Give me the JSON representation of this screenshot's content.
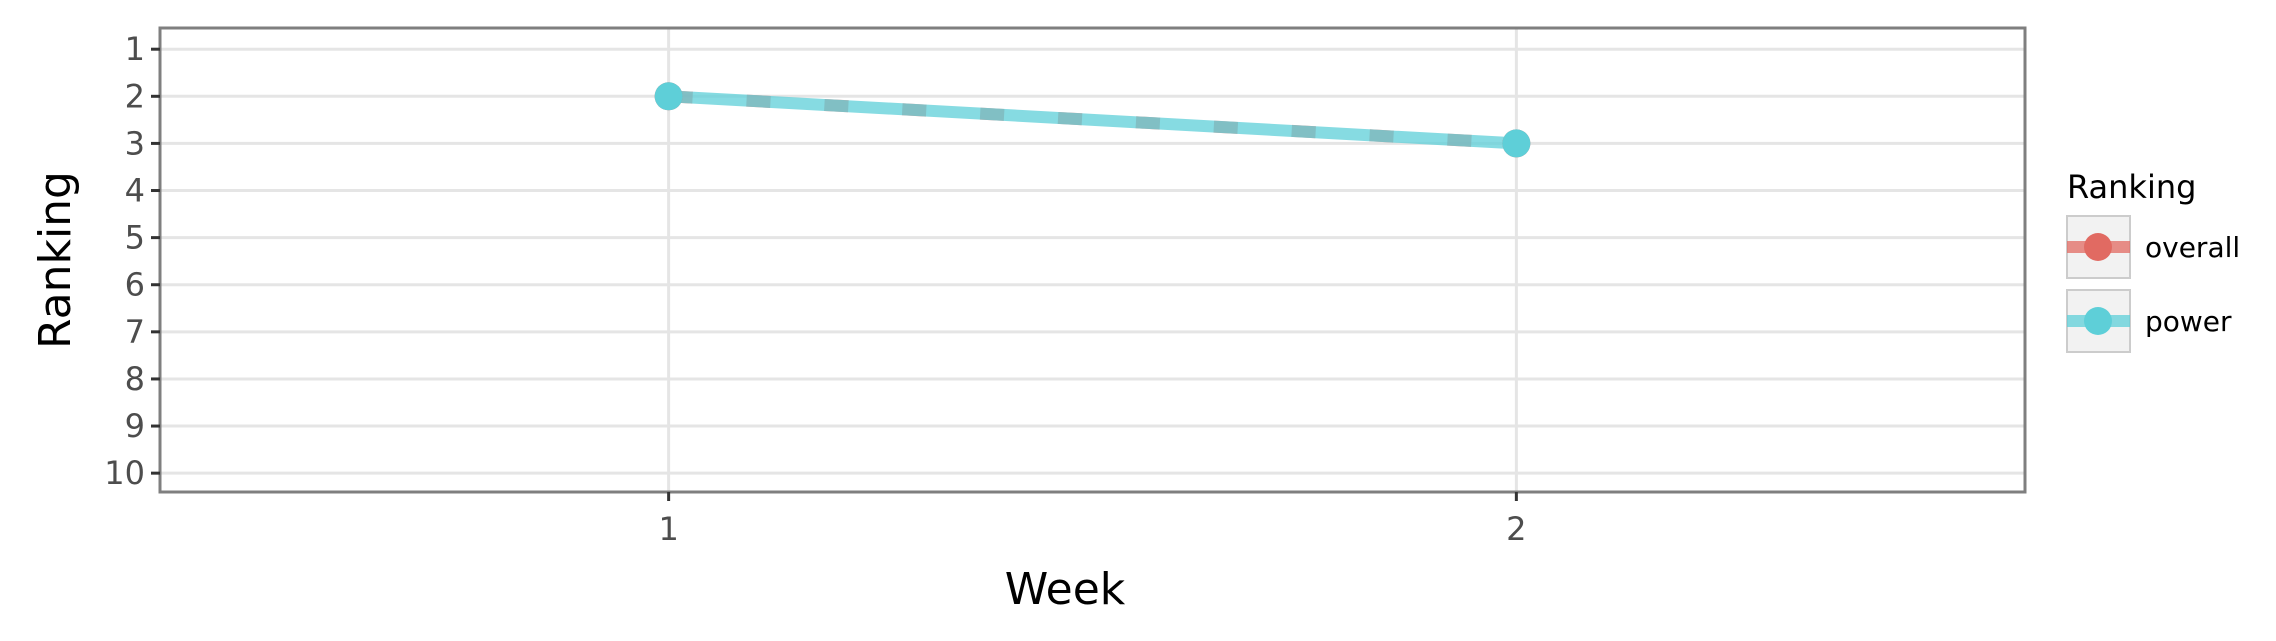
{
  "chart_data": {
    "type": "line",
    "xlabel": "Week",
    "ylabel": "Ranking",
    "x": [
      1,
      2
    ],
    "x_ticks": [
      "1",
      "2"
    ],
    "xlim": [
      0.4,
      2.6
    ],
    "y_ticks": [
      "1",
      "2",
      "3",
      "4",
      "5",
      "6",
      "7",
      "8",
      "9",
      "10"
    ],
    "ylim": [
      10.4,
      0.55
    ],
    "y_reversed": true,
    "grid": true,
    "legend": {
      "title": "Ranking",
      "position": "right",
      "entries": [
        "overall",
        "power"
      ]
    },
    "series": [
      {
        "name": "overall",
        "values": [
          2,
          3
        ],
        "color": "#E16A62",
        "line_style": "dashed"
      },
      {
        "name": "power",
        "values": [
          2,
          3
        ],
        "color": "#5ECFD8",
        "line_style": "solid"
      }
    ]
  }
}
